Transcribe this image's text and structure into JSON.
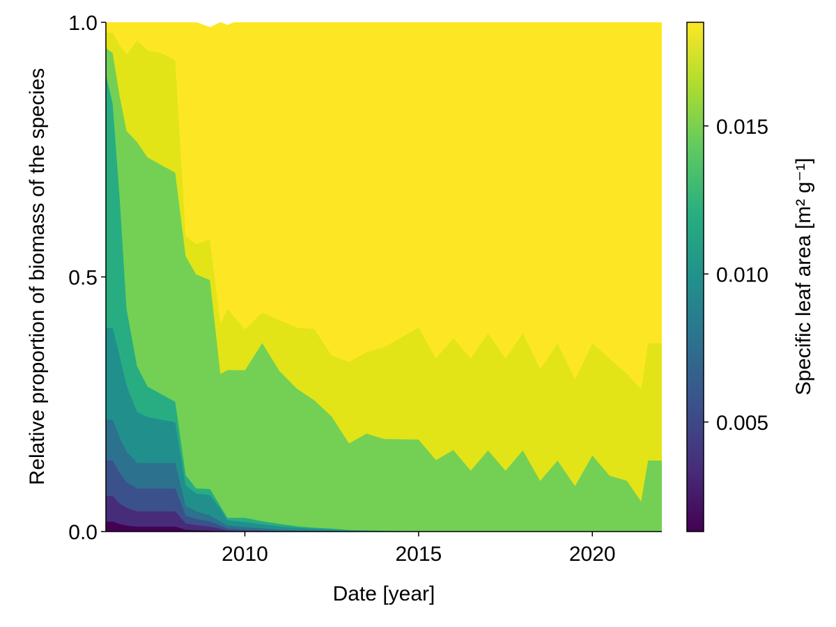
{
  "chart_data": {
    "type": "area",
    "stacked": true,
    "normalized": true,
    "xlabel": "Date [year]",
    "ylabel": "Relative proportion of biomass of the species",
    "xlim": [
      2006,
      2022
    ],
    "ylim": [
      0,
      1
    ],
    "xticks": [
      2010,
      2015,
      2020
    ],
    "yticks": [
      0.0,
      0.5,
      1.0
    ],
    "ytick_labels": [
      "0.0",
      "0.5",
      "1.0"
    ],
    "grid": false,
    "colorbar": {
      "label": "Specific leaf area [m² g⁻¹]",
      "range": [
        0.0013,
        0.0185
      ],
      "ticks": [
        0.005,
        0.01,
        0.015
      ],
      "tick_labels": [
        "0.005",
        "0.010",
        "0.015"
      ],
      "colormap": "viridis"
    },
    "x": [
      2006.0,
      2006.2,
      2006.4,
      2006.6,
      2006.9,
      2007.2,
      2007.6,
      2008.0,
      2008.3,
      2008.6,
      2009.0,
      2009.3,
      2009.5,
      2010.0,
      2010.5,
      2011.0,
      2011.5,
      2012.0,
      2012.5,
      2013.0,
      2013.5,
      2014.0,
      2014.5,
      2015.0,
      2015.5,
      2016.0,
      2016.5,
      2017.0,
      2017.5,
      2018.0,
      2018.5,
      2019.0,
      2019.5,
      2020.0,
      2020.5,
      2021.0,
      2021.4,
      2021.6,
      2022.0
    ],
    "series": [
      {
        "sla": 0.0015,
        "color": "#440154",
        "values": [
          0.02,
          0.02,
          0.015,
          0.012,
          0.01,
          0.01,
          0.01,
          0.01,
          0.004,
          0.003,
          0.002,
          0.001,
          0.0005,
          0.0003,
          0.0002,
          0.0001,
          0,
          0,
          0,
          0,
          0,
          0,
          0,
          0,
          0,
          0,
          0,
          0,
          0,
          0,
          0,
          0,
          0,
          0,
          0,
          0,
          0,
          0,
          0
        ]
      },
      {
        "sla": 0.003,
        "color": "#472c7a",
        "values": [
          0.05,
          0.05,
          0.04,
          0.035,
          0.03,
          0.03,
          0.03,
          0.03,
          0.012,
          0.01,
          0.008,
          0.005,
          0.002,
          0.001,
          0.0005,
          0.0003,
          0,
          0,
          0,
          0,
          0,
          0,
          0,
          0,
          0,
          0,
          0,
          0,
          0,
          0,
          0,
          0,
          0,
          0,
          0,
          0,
          0,
          0,
          0
        ]
      },
      {
        "sla": 0.0045,
        "color": "#3b518b",
        "values": [
          0.07,
          0.07,
          0.06,
          0.05,
          0.045,
          0.045,
          0.045,
          0.045,
          0.015,
          0.012,
          0.01,
          0.006,
          0.004,
          0.003,
          0.002,
          0.001,
          0.0008,
          0.0005,
          0.0003,
          0,
          0,
          0,
          0,
          0,
          0,
          0,
          0,
          0,
          0,
          0,
          0,
          0,
          0,
          0,
          0,
          0,
          0,
          0,
          0
        ]
      },
      {
        "sla": 0.006,
        "color": "#2c718e",
        "values": [
          0.08,
          0.08,
          0.07,
          0.06,
          0.05,
          0.05,
          0.05,
          0.05,
          0.02,
          0.015,
          0.012,
          0.008,
          0.006,
          0.005,
          0.004,
          0.003,
          0.002,
          0.0015,
          0.001,
          0.0005,
          0.0003,
          0.0002,
          0.0001,
          0,
          0,
          0,
          0,
          0,
          0,
          0,
          0,
          0,
          0,
          0,
          0,
          0,
          0,
          0,
          0
        ]
      },
      {
        "sla": 0.0075,
        "color": "#21908d",
        "values": [
          0.18,
          0.18,
          0.16,
          0.13,
          0.1,
          0.09,
          0.085,
          0.08,
          0.04,
          0.035,
          0.04,
          0.025,
          0.01,
          0.01,
          0.008,
          0.006,
          0.005,
          0.004,
          0.003,
          0.002,
          0.0015,
          0.001,
          0.001,
          0.0008,
          0.0005,
          0.0003,
          0.0002,
          0.0001,
          0,
          0,
          0,
          0,
          0,
          0,
          0,
          0,
          0,
          0,
          0
        ]
      },
      {
        "sla": 0.0095,
        "color": "#27ad81",
        "values": [
          0.5,
          0.44,
          0.31,
          0.15,
          0.09,
          0.06,
          0.05,
          0.04,
          0.02,
          0.01,
          0.012,
          0.005,
          0.005,
          0.008,
          0.006,
          0.005,
          0.003,
          0.002,
          0.002,
          0.001,
          0.001,
          0.001,
          0.0005,
          0.0003,
          0.0002,
          0.0001,
          0,
          0,
          0,
          0,
          0,
          0,
          0,
          0,
          0,
          0,
          0,
          0,
          0
        ]
      },
      {
        "sla": 0.015,
        "color": "#73d055",
        "values": [
          0.05,
          0.1,
          0.2,
          0.35,
          0.44,
          0.45,
          0.45,
          0.45,
          0.43,
          0.42,
          0.41,
          0.26,
          0.29,
          0.29,
          0.35,
          0.3,
          0.27,
          0.25,
          0.22,
          0.17,
          0.19,
          0.18,
          0.18,
          0.18,
          0.14,
          0.16,
          0.12,
          0.16,
          0.12,
          0.16,
          0.1,
          0.14,
          0.09,
          0.15,
          0.11,
          0.1,
          0.06,
          0.14,
          0.14
        ]
      },
      {
        "sla": 0.0175,
        "color": "#e2e418",
        "values": [
          0.03,
          0.04,
          0.1,
          0.15,
          0.2,
          0.21,
          0.22,
          0.22,
          0.04,
          0.06,
          0.08,
          0.1,
          0.12,
          0.08,
          0.06,
          0.1,
          0.12,
          0.14,
          0.12,
          0.16,
          0.16,
          0.18,
          0.2,
          0.22,
          0.2,
          0.22,
          0.22,
          0.23,
          0.22,
          0.23,
          0.22,
          0.23,
          0.21,
          0.22,
          0.23,
          0.21,
          0.22,
          0.23,
          0.23
        ]
      },
      {
        "sla": 0.0185,
        "color": "#fde725",
        "values": [
          0.02,
          0.02,
          0.05,
          0.07,
          0.085,
          0.055,
          0.06,
          0.075,
          0.42,
          0.435,
          0.416,
          0.59,
          0.557,
          0.611,
          0.581,
          0.595,
          0.601,
          0.6035,
          0.6537,
          0.6665,
          0.6473,
          0.6378,
          0.6184,
          0.5989,
          0.6593,
          0.6196,
          0.6598,
          0.6099,
          0.66,
          0.61,
          0.68,
          0.63,
          0.7,
          0.63,
          0.66,
          0.69,
          0.72,
          0.63,
          0.63
        ]
      }
    ]
  }
}
